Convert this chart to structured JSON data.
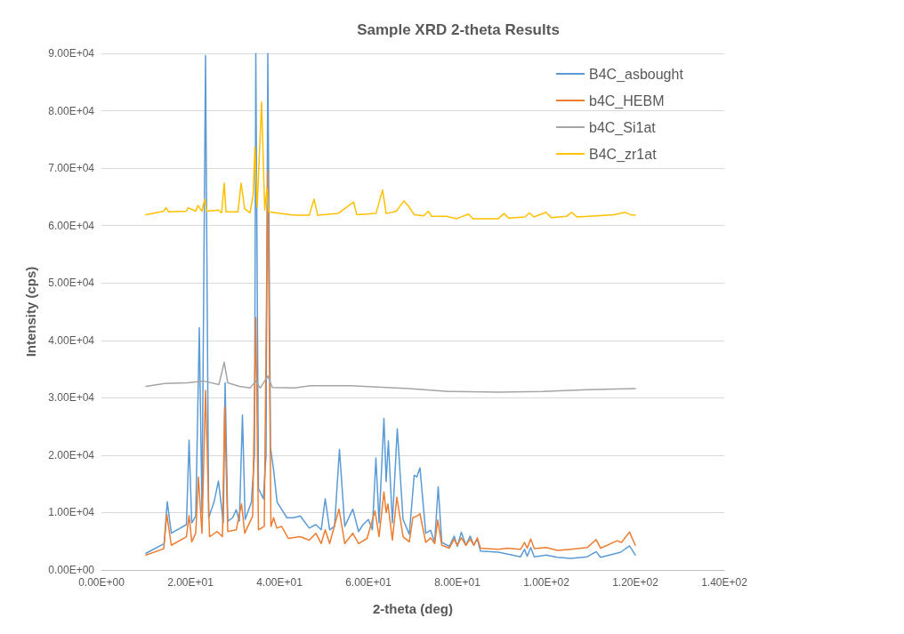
{
  "chart_data": {
    "type": "line",
    "title": "Sample XRD 2-theta Results",
    "xlabel": "2-theta (deg)",
    "ylabel": "Intensity (cps)",
    "xlim": [
      0,
      140
    ],
    "xticks": [
      {
        "value": 0,
        "label": "0.00E+00"
      },
      {
        "value": 20,
        "label": "2.00E+01"
      },
      {
        "value": 40,
        "label": "4.00E+01"
      },
      {
        "value": 60,
        "label": "6.00E+01"
      },
      {
        "value": 80,
        "label": "8.00E+01"
      },
      {
        "value": 100,
        "label": "1.00E+02"
      },
      {
        "value": 120,
        "label": "1.20E+02"
      },
      {
        "value": 140,
        "label": "1.40E+02"
      }
    ],
    "ylim": [
      0,
      90000
    ],
    "yticks": [
      {
        "value": 0,
        "label": "0.00E+00"
      },
      {
        "value": 10000,
        "label": "1.00E+04"
      },
      {
        "value": 20000,
        "label": "2.00E+04"
      },
      {
        "value": 30000,
        "label": "3.00E+04"
      },
      {
        "value": 40000,
        "label": "4.00E+04"
      },
      {
        "value": 50000,
        "label": "5.00E+04"
      },
      {
        "value": 60000,
        "label": "6.00E+04"
      },
      {
        "value": 70000,
        "label": "7.00E+04"
      },
      {
        "value": 80000,
        "label": "8.00E+04"
      },
      {
        "value": 90000,
        "label": "9.00E+04"
      }
    ],
    "grid": "y",
    "legend": "top right",
    "marker": "none",
    "line_style": "solid",
    "series": [
      {
        "name": "B4C_asbought",
        "color": "#5b9bd5",
        "x": [
          10,
          14.1,
          14.8,
          15.7,
          19.1,
          19.7,
          20.3,
          21.2,
          22.0,
          22.6,
          23.4,
          24.1,
          25.3,
          26.3,
          27.4,
          27.8,
          28.4,
          29.5,
          30.3,
          31.0,
          31.7,
          32.3,
          33.7,
          34.4,
          34.7,
          35.3,
          36.4,
          37.0,
          37.4,
          38.0,
          38.7,
          39.5,
          41.7,
          43.2,
          44.7,
          46.7,
          48.2,
          49.4,
          50.3,
          51.3,
          52.4,
          53.5,
          54.7,
          56.5,
          57.8,
          58.8,
          60.0,
          60.9,
          61.7,
          62.4,
          63.5,
          64.0,
          64.5,
          65.4,
          66.5,
          67.8,
          69.2,
          70.3,
          70.9,
          71.6,
          72.9,
          74.0,
          74.9,
          75.7,
          76.5,
          78.2,
          79.3,
          80.0,
          80.9,
          81.9,
          82.9,
          83.7,
          84.5,
          85.2,
          89.2,
          91.2,
          94.2,
          95.1,
          95.7,
          96.5,
          97.3,
          100.0,
          102.5,
          105.5,
          109.2,
          111.2,
          112.2,
          115.2,
          116.7,
          118.7,
          120.0
        ],
        "values": [
          2900,
          4600,
          11900,
          6400,
          7900,
          22600,
          8200,
          9400,
          42200,
          10000,
          89600,
          9100,
          11800,
          15500,
          8200,
          32600,
          8500,
          9100,
          10500,
          8500,
          27000,
          8800,
          11800,
          20100,
          90000,
          14200,
          12400,
          20000,
          90000,
          21300,
          17400,
          11800,
          9100,
          9100,
          9400,
          7300,
          7900,
          7000,
          12400,
          7000,
          7600,
          21000,
          7600,
          10600,
          6700,
          7900,
          8800,
          7000,
          19500,
          8200,
          26400,
          15400,
          22500,
          8200,
          24600,
          8800,
          6200,
          16500,
          16200,
          17800,
          6400,
          6900,
          4800,
          14500,
          4800,
          4100,
          5900,
          4100,
          6600,
          4300,
          5900,
          4300,
          5400,
          3300,
          3100,
          2800,
          2300,
          3600,
          2400,
          3900,
          2300,
          2600,
          2200,
          2000,
          2300,
          3200,
          2200,
          2800,
          3100,
          4200,
          2600
        ]
      },
      {
        "name": "b4C_HEBM",
        "color": "#ed7d31",
        "x": [
          10,
          14.0,
          14.7,
          15.7,
          19.1,
          19.7,
          20.3,
          21.2,
          21.8,
          22.6,
          23.4,
          24.3,
          26.0,
          27.2,
          27.7,
          28.4,
          30.3,
          31.5,
          32.2,
          34.0,
          34.7,
          35.3,
          36.6,
          37.4,
          38.1,
          38.7,
          39.4,
          40.5,
          42.0,
          44.7,
          46.7,
          48.2,
          49.4,
          50.3,
          51.3,
          53.4,
          54.7,
          56.5,
          57.8,
          59.7,
          61.5,
          62.4,
          63.5,
          64.0,
          64.4,
          65.4,
          66.4,
          67.8,
          69.2,
          70.0,
          70.9,
          71.6,
          72.9,
          74.0,
          74.9,
          75.6,
          76.5,
          78.2,
          79.3,
          80.0,
          80.9,
          81.9,
          82.9,
          83.7,
          84.5,
          85.2,
          89.2,
          91.2,
          94.2,
          95.1,
          95.7,
          96.5,
          97.3,
          100.0,
          102.5,
          105.5,
          109.2,
          111.2,
          112.2,
          115.9,
          116.9,
          118.7,
          120.0
        ],
        "values": [
          2600,
          3700,
          9700,
          4300,
          5800,
          9500,
          4900,
          6400,
          16200,
          6400,
          31300,
          5800,
          6700,
          5800,
          28400,
          6700,
          7000,
          11500,
          6400,
          9400,
          44000,
          7000,
          7600,
          69500,
          7600,
          9100,
          7300,
          7600,
          5500,
          5800,
          5200,
          6400,
          4600,
          7000,
          4600,
          10600,
          4600,
          6400,
          4600,
          5500,
          10300,
          5800,
          13600,
          10000,
          11500,
          5200,
          12700,
          5800,
          4900,
          9100,
          9400,
          9800,
          4800,
          5600,
          4600,
          8700,
          4300,
          3800,
          5400,
          4300,
          5600,
          4300,
          5400,
          4300,
          5600,
          3800,
          3600,
          3800,
          3600,
          4800,
          3800,
          5400,
          3700,
          3900,
          3400,
          3600,
          3900,
          5300,
          3800,
          5100,
          4800,
          6600,
          4300
        ]
      },
      {
        "name": "b4C_Si1at",
        "color": "#a5a5a5",
        "x": [
          10,
          14.3,
          19.3,
          23.1,
          26.4,
          27.6,
          28.4,
          31.0,
          33.4,
          34.7,
          35.7,
          37.4,
          38.4,
          43.4,
          47.0,
          55.9,
          69.2,
          77.9,
          89.2,
          99.2,
          109.2,
          120.0
        ],
        "values": [
          32000,
          32500,
          32600,
          32900,
          32300,
          36200,
          32600,
          32000,
          31700,
          32900,
          31700,
          33800,
          31800,
          31700,
          32100,
          32100,
          31600,
          31100,
          31000,
          31100,
          31400,
          31600
        ]
      },
      {
        "name": "B4C_zr1at",
        "color": "#ffc000",
        "x": [
          10,
          14.0,
          14.5,
          15.1,
          19.1,
          19.5,
          21.2,
          21.7,
          22.6,
          23.2,
          23.7,
          26.3,
          27.0,
          27.6,
          28.0,
          30.7,
          31.4,
          32.2,
          33.4,
          34.1,
          34.5,
          35.0,
          36.0,
          36.7,
          37.2,
          37.6,
          40.3,
          43.3,
          46.7,
          47.8,
          48.6,
          53.2,
          56.7,
          57.4,
          61.7,
          63.2,
          64.0,
          66.3,
          68.0,
          69.0,
          70.3,
          72.4,
          73.5,
          74.2,
          77.5,
          79.9,
          82.5,
          83.5,
          89.2,
          90.5,
          91.5,
          95.2,
          96.2,
          97.2,
          99.9,
          101.1,
          104.5,
          105.7,
          106.9,
          111.2,
          115.2,
          117.7,
          118.9,
          120.0
        ],
        "values": [
          61900,
          62500,
          63100,
          62400,
          62500,
          63100,
          62500,
          63500,
          62500,
          64600,
          62500,
          62700,
          62200,
          67400,
          62400,
          62400,
          67400,
          62900,
          62200,
          65300,
          73700,
          63200,
          81500,
          62700,
          66500,
          62400,
          62100,
          61800,
          61800,
          64600,
          61800,
          62100,
          64100,
          61900,
          62100,
          66200,
          62100,
          62500,
          64300,
          63400,
          61900,
          61700,
          62500,
          61600,
          61600,
          61200,
          62000,
          61200,
          61200,
          62100,
          61300,
          61500,
          62200,
          61500,
          62300,
          61400,
          61600,
          62300,
          61500,
          61700,
          61900,
          62300,
          61900,
          61800
        ]
      }
    ]
  }
}
